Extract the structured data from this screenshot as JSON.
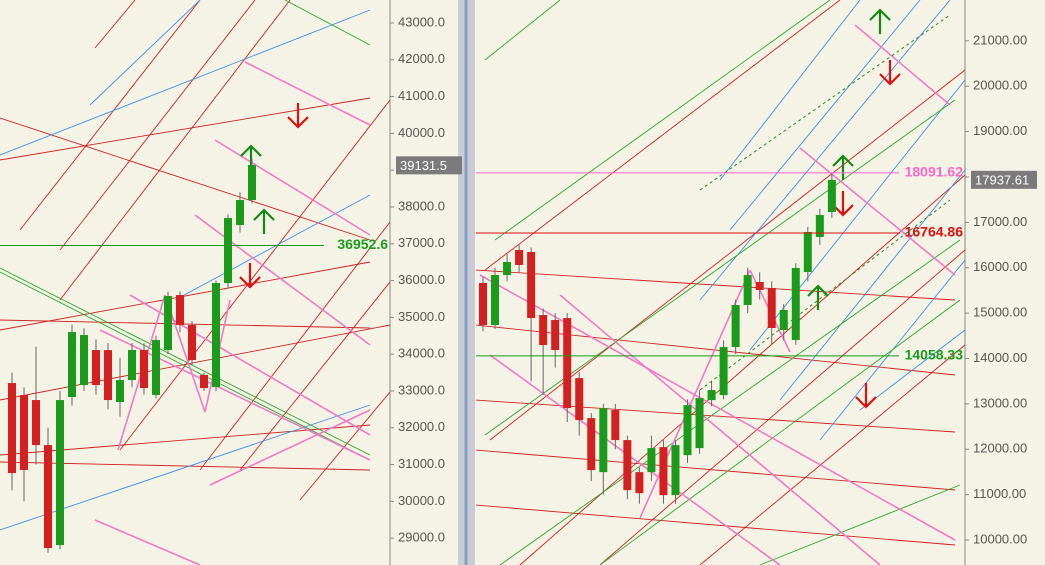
{
  "chart_data": [
    {
      "type": "candlestick",
      "ylim": [
        28270,
        43625
      ],
      "yticks": [
        {
          "value": 29000,
          "label": "29000.0"
        },
        {
          "value": 30000,
          "label": "30000.0"
        },
        {
          "value": 31000,
          "label": "31000.0"
        },
        {
          "value": 32000,
          "label": "32000.0"
        },
        {
          "value": 33000,
          "label": "33000.0"
        },
        {
          "value": 34000,
          "label": "34000.0"
        },
        {
          "value": 35000,
          "label": "35000.0"
        },
        {
          "value": 36000,
          "label": "36000.0"
        },
        {
          "value": 37000,
          "label": "37000.0"
        },
        {
          "value": 38000,
          "label": "38000.0"
        },
        {
          "value": 39000,
          "label": "39000.0"
        },
        {
          "value": 40000,
          "label": "40000.0"
        },
        {
          "value": 41000,
          "label": "41000.0"
        },
        {
          "value": 42000,
          "label": "42000.0"
        },
        {
          "value": 43000,
          "label": "43000.0"
        }
      ],
      "up_color": "#1a9c1a",
      "down_color": "#d42020",
      "candles": [
        [
          33215,
          33500,
          30300,
          30769
        ],
        [
          32889,
          33100,
          30000,
          30851
        ],
        [
          32753,
          34200,
          31000,
          31530
        ],
        [
          31530,
          32000,
          28600,
          28730
        ],
        [
          28812,
          33000,
          28700,
          32753
        ],
        [
          32835,
          34800,
          32600,
          34601
        ],
        [
          33161,
          34700,
          33000,
          34520
        ],
        [
          34112,
          34400,
          32900,
          33161
        ],
        [
          34112,
          34300,
          32500,
          32753
        ],
        [
          32699,
          33900,
          32300,
          33297
        ],
        [
          33297,
          34300,
          33100,
          34112
        ],
        [
          34112,
          34300,
          32900,
          33079
        ],
        [
          32889,
          34500,
          32800,
          34384
        ],
        [
          34112,
          35700,
          34000,
          35580
        ],
        [
          35607,
          35700,
          34600,
          34792
        ],
        [
          34792,
          34900,
          33700,
          33840
        ],
        [
          33433,
          33500,
          33000,
          33079
        ],
        [
          33106,
          36000,
          33000,
          35933
        ],
        [
          35933,
          37800,
          35800,
          37700
        ],
        [
          37510,
          38400,
          37300,
          38189
        ],
        [
          38189,
          39300,
          38100,
          39140
        ]
      ],
      "levels": [
        {
          "value": 36952.6,
          "style": "line",
          "color": "#1a9c1a"
        },
        {
          "value": 39131.5,
          "style": "box",
          "color": "#7a7a7a"
        }
      ]
    },
    {
      "type": "candlestick",
      "ylim": [
        9450,
        21900
      ],
      "yticks": [
        {
          "value": 10000,
          "label": "10000.00"
        },
        {
          "value": 11000,
          "label": "11000.00"
        },
        {
          "value": 12000,
          "label": "12000.00"
        },
        {
          "value": 13000,
          "label": "13000.00"
        },
        {
          "value": 14000,
          "label": "14000.00"
        },
        {
          "value": 15000,
          "label": "15000.00"
        },
        {
          "value": 16000,
          "label": "16000.00"
        },
        {
          "value": 17000,
          "label": "17000.00"
        },
        {
          "value": 18000,
          "label": "18000.00"
        },
        {
          "value": 19000,
          "label": "19000.00"
        },
        {
          "value": 20000,
          "label": "20000.00"
        },
        {
          "value": 21000,
          "label": "21000.00"
        }
      ],
      "up_color": "#1a9c1a",
      "down_color": "#d42020",
      "candles": [
        [
          15664,
          15800,
          14600,
          14738
        ],
        [
          14738,
          16000,
          14650,
          15840
        ],
        [
          15840,
          16300,
          15700,
          16127
        ],
        [
          16392,
          16500,
          15900,
          16061
        ],
        [
          16347,
          16450,
          13500,
          14892
        ],
        [
          14958,
          15100,
          13200,
          14297
        ],
        [
          14848,
          15000,
          13800,
          14187
        ],
        [
          14892,
          15000,
          12600,
          12908
        ],
        [
          13569,
          13700,
          12300,
          12643
        ],
        [
          12687,
          12800,
          11300,
          11541
        ],
        [
          11496,
          13000,
          11000,
          12908
        ],
        [
          12864,
          13000,
          12000,
          12202
        ],
        [
          12202,
          12300,
          10900,
          11100
        ],
        [
          11496,
          11600,
          10800,
          11033
        ],
        [
          11496,
          12300,
          11300,
          12026
        ],
        [
          12048,
          12200,
          10800,
          10989
        ],
        [
          10989,
          12200,
          10800,
          12092
        ],
        [
          11871,
          13100,
          11700,
          12974
        ],
        [
          12026,
          13300,
          11900,
          13128
        ],
        [
          13084,
          13500,
          12950,
          13305
        ],
        [
          13194,
          14400,
          13100,
          14253
        ],
        [
          14253,
          15300,
          14100,
          15179
        ],
        [
          15179,
          16000,
          15000,
          15840
        ],
        [
          15686,
          15900,
          15300,
          15510
        ],
        [
          15554,
          15700,
          14300,
          14672
        ],
        [
          14628,
          15200,
          14400,
          15069
        ],
        [
          14407,
          16100,
          14300,
          15995
        ],
        [
          15906,
          16900,
          15700,
          16788
        ],
        [
          16678,
          17300,
          16500,
          17163
        ],
        [
          17229,
          18100,
          17100,
          17935
        ]
      ],
      "levels": [
        {
          "value": 18091.62,
          "style": "line",
          "color": "#ff66cc"
        },
        {
          "value": 17937.61,
          "style": "box",
          "color": "#7a7a7a"
        },
        {
          "value": 16764.86,
          "style": "line",
          "color": "#e01010"
        },
        {
          "value": 14058.33,
          "style": "line",
          "color": "#1a9c1a"
        }
      ]
    }
  ]
}
